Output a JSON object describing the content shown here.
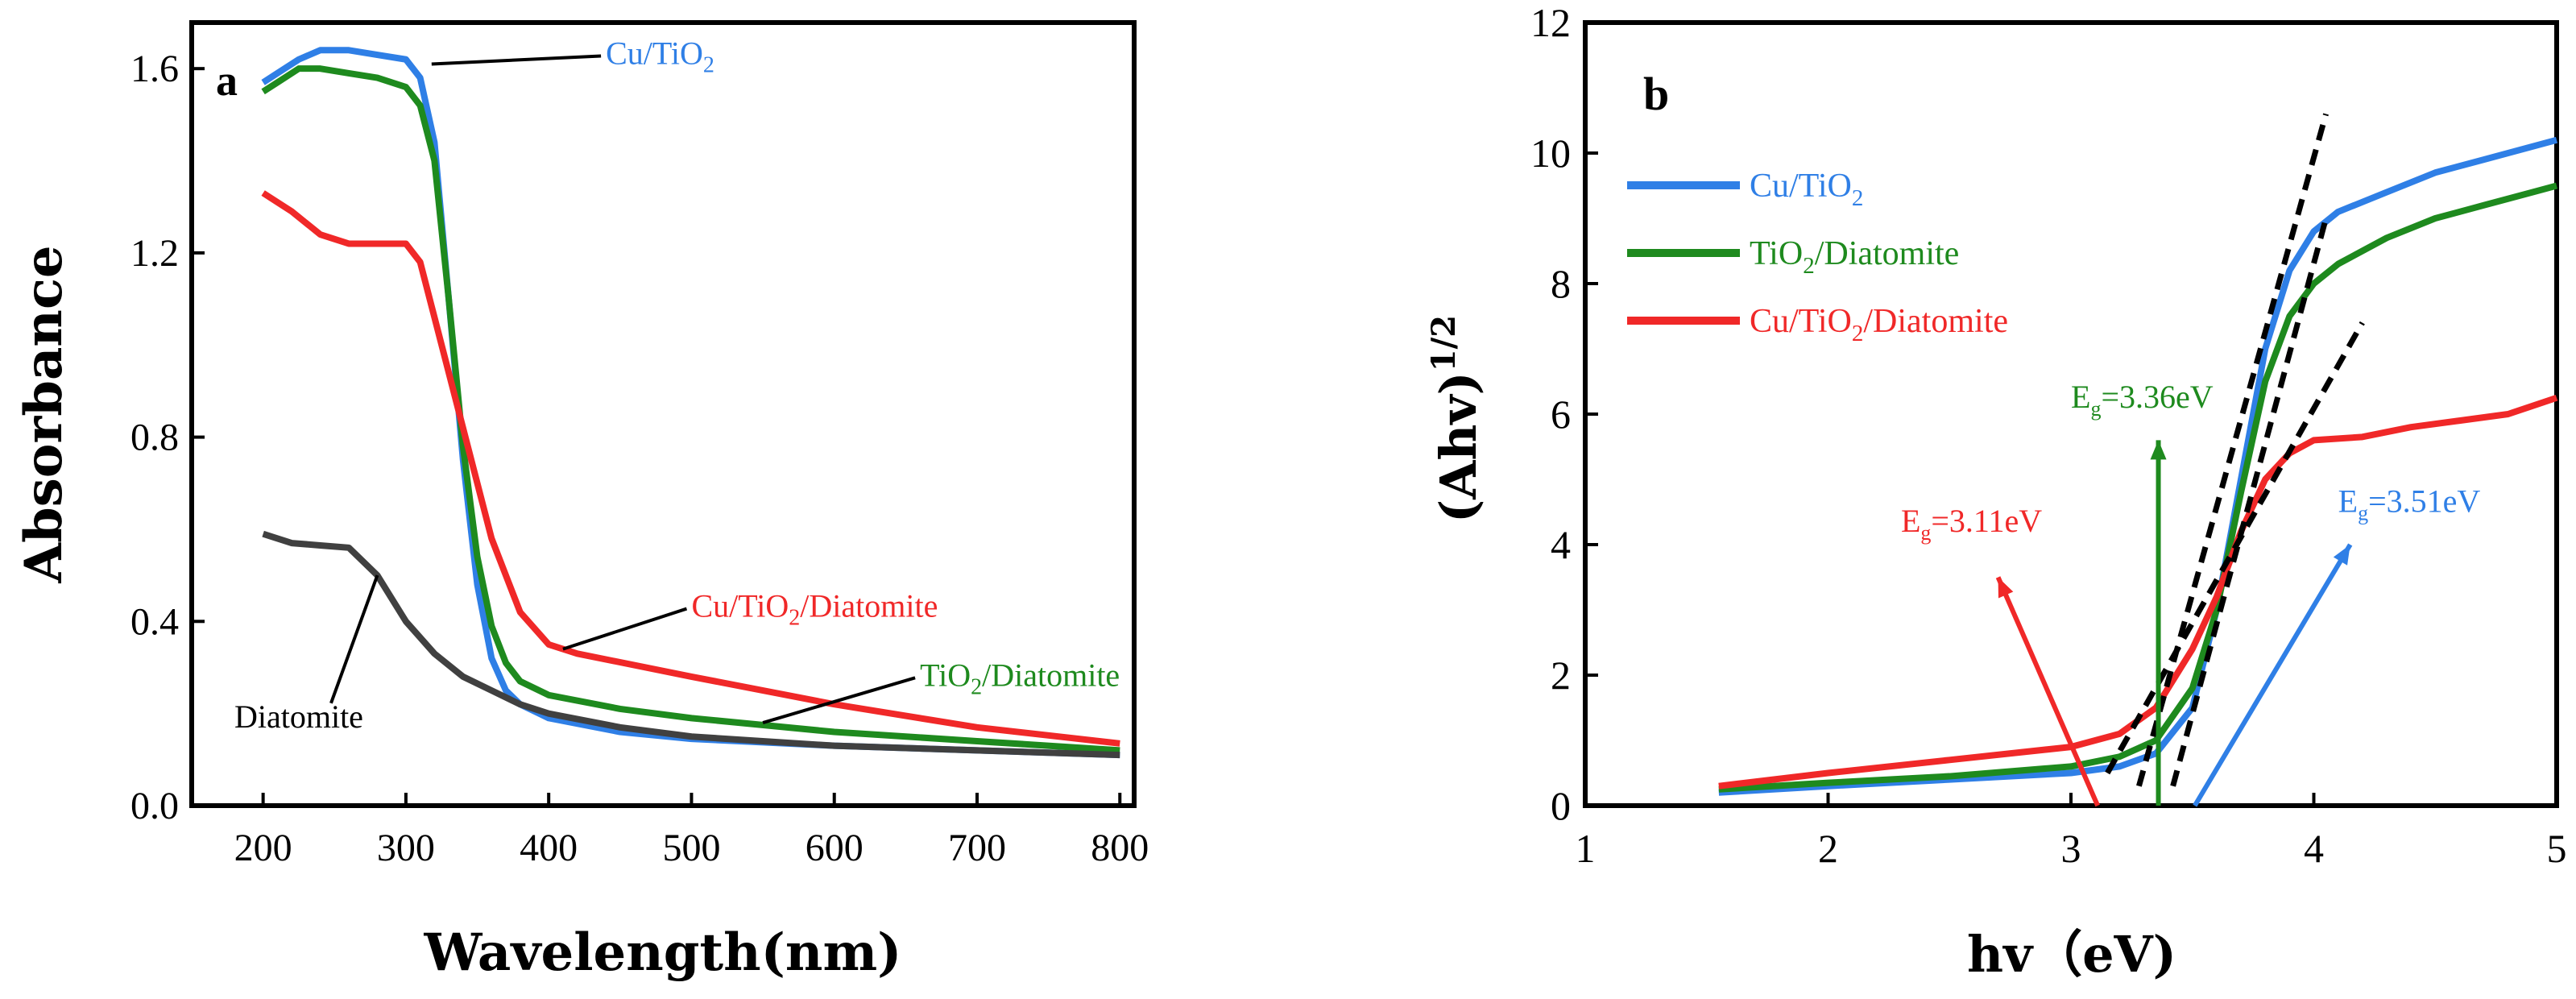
{
  "colors": {
    "blue": "#2f7fe6",
    "green": "#1e8a1e",
    "red": "#f02828",
    "gray": "#404040",
    "black": "#000000"
  },
  "chart_data": [
    {
      "panel": "a",
      "type": "line",
      "xlabel": "Wavelength(nm)",
      "ylabel": "Absorbance",
      "xlim": [
        150,
        810
      ],
      "ylim": [
        0,
        1.7
      ],
      "xticks": [
        200,
        300,
        400,
        500,
        600,
        700,
        800
      ],
      "yticks": [
        0.0,
        0.4,
        0.8,
        1.2,
        1.6
      ],
      "ytick_labels": [
        "0.0",
        "0.4",
        "0.8",
        "1.2",
        "1.6"
      ],
      "series": [
        {
          "name": "Cu/TiO2",
          "color": "blue",
          "x": [
            200,
            210,
            225,
            240,
            260,
            280,
            300,
            310,
            320,
            330,
            340,
            350,
            360,
            370,
            380,
            400,
            450,
            500,
            600,
            700,
            800
          ],
          "y": [
            1.57,
            1.59,
            1.62,
            1.64,
            1.64,
            1.63,
            1.62,
            1.58,
            1.44,
            1.1,
            0.75,
            0.48,
            0.32,
            0.25,
            0.22,
            0.19,
            0.16,
            0.145,
            0.13,
            0.12,
            0.11
          ]
        },
        {
          "name": "TiO2/Diatomite",
          "color": "green",
          "x": [
            200,
            210,
            225,
            240,
            260,
            280,
            300,
            310,
            320,
            330,
            340,
            350,
            360,
            370,
            380,
            400,
            450,
            500,
            600,
            700,
            800
          ],
          "y": [
            1.55,
            1.57,
            1.6,
            1.6,
            1.59,
            1.58,
            1.56,
            1.52,
            1.4,
            1.1,
            0.78,
            0.54,
            0.39,
            0.31,
            0.27,
            0.24,
            0.21,
            0.19,
            0.16,
            0.14,
            0.12
          ]
        },
        {
          "name": "Cu/TiO2/Diatomite",
          "color": "red",
          "x": [
            200,
            220,
            240,
            260,
            280,
            300,
            310,
            320,
            340,
            360,
            380,
            400,
            420,
            500,
            600,
            700,
            800
          ],
          "y": [
            1.33,
            1.29,
            1.24,
            1.22,
            1.22,
            1.22,
            1.18,
            1.06,
            0.82,
            0.58,
            0.42,
            0.35,
            0.33,
            0.28,
            0.22,
            0.17,
            0.135
          ]
        },
        {
          "name": "Diatomite",
          "color": "gray",
          "x": [
            200,
            220,
            240,
            260,
            280,
            300,
            320,
            340,
            360,
            380,
            400,
            450,
            500,
            600,
            700,
            800
          ],
          "y": [
            0.59,
            0.57,
            0.565,
            0.56,
            0.5,
            0.4,
            0.33,
            0.28,
            0.25,
            0.22,
            0.2,
            0.17,
            0.15,
            0.13,
            0.12,
            0.11
          ]
        }
      ],
      "annotations": [
        {
          "text": "Cu/TiO",
          "sub": "2",
          "tail": "",
          "color": "blue",
          "point": [
            318,
            1.61
          ],
          "label_at": [
            440,
            1.61
          ]
        },
        {
          "text": "Cu/TiO",
          "sub": "2",
          "tail": "/Diatomite",
          "color": "red",
          "point": [
            410,
            0.34
          ],
          "label_at": [
            500,
            0.41
          ]
        },
        {
          "text": "TiO",
          "sub": "2",
          "tail": "/Diatomite",
          "color": "green",
          "point": [
            550,
            0.18
          ],
          "label_at": [
            660,
            0.26
          ]
        },
        {
          "text": "Diatomite",
          "sub": "",
          "tail": "",
          "color": "black",
          "point": [
            280,
            0.5
          ],
          "label_at": [
            225,
            0.17
          ]
        }
      ]
    },
    {
      "panel": "b",
      "type": "line",
      "xlabel": "hv（eV)",
      "ylabel": "(Ahv)",
      "ylabel_sup": "1/2",
      "xlim": [
        1,
        5
      ],
      "ylim": [
        0,
        12
      ],
      "xticks": [
        1,
        2,
        3,
        4,
        5
      ],
      "yticks": [
        0,
        2,
        4,
        6,
        8,
        10,
        12
      ],
      "series": [
        {
          "name": "Cu/TiO2",
          "color": "blue",
          "x": [
            1.55,
            2.0,
            2.5,
            3.0,
            3.2,
            3.35,
            3.5,
            3.6,
            3.7,
            3.8,
            3.9,
            4.0,
            4.1,
            4.3,
            4.5,
            4.7,
            4.9,
            5.0
          ],
          "y": [
            0.2,
            0.3,
            0.4,
            0.5,
            0.6,
            0.8,
            1.5,
            3.0,
            5.0,
            7.0,
            8.2,
            8.8,
            9.1,
            9.4,
            9.7,
            9.9,
            10.1,
            10.2
          ]
        },
        {
          "name": "TiO2/Diatomite",
          "color": "green",
          "x": [
            1.55,
            2.0,
            2.5,
            3.0,
            3.2,
            3.35,
            3.5,
            3.6,
            3.7,
            3.8,
            3.9,
            4.0,
            4.1,
            4.3,
            4.5,
            4.7,
            4.9,
            5.0
          ],
          "y": [
            0.25,
            0.35,
            0.45,
            0.6,
            0.75,
            1.0,
            1.8,
            3.0,
            4.8,
            6.5,
            7.5,
            8.0,
            8.3,
            8.7,
            9.0,
            9.2,
            9.4,
            9.5
          ]
        },
        {
          "name": "Cu/TiO2/Diatomite",
          "color": "red",
          "x": [
            1.55,
            2.0,
            2.5,
            3.0,
            3.2,
            3.35,
            3.5,
            3.6,
            3.7,
            3.8,
            3.9,
            4.0,
            4.2,
            4.4,
            4.6,
            4.8,
            5.0
          ],
          "y": [
            0.3,
            0.5,
            0.7,
            0.9,
            1.1,
            1.5,
            2.4,
            3.2,
            4.2,
            5.0,
            5.4,
            5.6,
            5.65,
            5.8,
            5.9,
            6.0,
            6.25
          ]
        }
      ],
      "tangents": [
        {
          "x": [
            3.15,
            4.2
          ],
          "y": [
            0.5,
            7.4
          ]
        },
        {
          "x": [
            3.28,
            4.05
          ],
          "y": [
            0.3,
            10.6
          ]
        },
        {
          "x": [
            3.42,
            4.05
          ],
          "y": [
            0.3,
            9.0
          ]
        }
      ],
      "legend": [
        {
          "text": "Cu/TiO",
          "sub": "2",
          "tail": "",
          "color": "blue"
        },
        {
          "text": "TiO",
          "sub": "2",
          "tail": "/Diatomite",
          "color": "green"
        },
        {
          "text": "Cu/TiO",
          "sub": "2",
          "tail": "/Diatomite",
          "color": "red"
        }
      ],
      "annotations": [
        {
          "label": "E",
          "sub": "g",
          "tail": "=3.11eV",
          "value": 3.11,
          "color": "red",
          "arrow_from": [
            3.11,
            0
          ],
          "arrow_to": [
            2.7,
            3.5
          ],
          "label_at": [
            2.3,
            4.2
          ]
        },
        {
          "label": "E",
          "sub": "g",
          "tail": "=3.36eV",
          "value": 3.36,
          "color": "green",
          "arrow_from": [
            3.36,
            0
          ],
          "arrow_to": [
            3.36,
            5.6
          ],
          "label_at": [
            3.0,
            6.1
          ]
        },
        {
          "label": "E",
          "sub": "g",
          "tail": "=3.51eV",
          "value": 3.51,
          "color": "blue",
          "arrow_from": [
            3.51,
            0
          ],
          "arrow_to": [
            4.15,
            4.0
          ],
          "label_at": [
            4.1,
            4.5
          ]
        }
      ]
    }
  ]
}
